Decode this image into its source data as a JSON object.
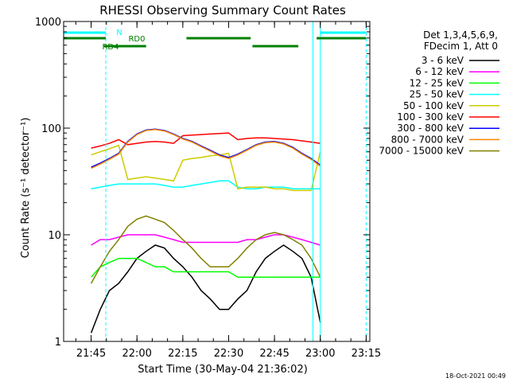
{
  "chart_data": {
    "type": "line",
    "title": "RHESSI Observing Summary Count Rates",
    "xlabel": "Start Time (30-May-04 21:36:02)",
    "ylabel": "Count Rate (s⁻¹ detector⁻¹)",
    "x_unit": "minutes",
    "y_scale": "log",
    "xlim": [
      21.6,
      23.27
    ],
    "ylim": [
      1,
      1000
    ],
    "x_ticks": [
      {
        "label": "21:45",
        "value": 21.75
      },
      {
        "label": "22:00",
        "value": 22.0
      },
      {
        "label": "22:15",
        "value": 22.25
      },
      {
        "label": "22:30",
        "value": 22.5
      },
      {
        "label": "22:45",
        "value": 22.75
      },
      {
        "label": "23:00",
        "value": 23.0
      },
      {
        "label": "23:15",
        "value": 23.25
      }
    ],
    "y_ticks": [
      {
        "label": "1",
        "value": 1
      },
      {
        "label": "10",
        "value": 10
      },
      {
        "label": "100",
        "value": 100
      },
      {
        "label": "1000",
        "value": 1000
      }
    ],
    "legend_header": [
      "Det 1,3,4,5,6,9,",
      "FDecim 1, Att 0"
    ],
    "legend_position": "right",
    "series": [
      {
        "name": "3 - 6 keV",
        "color": "#000000",
        "x": [
          21.75,
          21.8,
          21.85,
          21.9,
          21.95,
          22.0,
          22.05,
          22.1,
          22.15,
          22.2,
          22.25,
          22.3,
          22.35,
          22.4,
          22.45,
          22.5,
          22.55,
          22.6,
          22.65,
          22.7,
          22.75,
          22.8,
          22.85,
          22.9,
          22.95,
          23.0
        ],
        "y": [
          1.2,
          2,
          3,
          3.5,
          4.5,
          6,
          7,
          8,
          7.5,
          6,
          5,
          4,
          3,
          2.5,
          2,
          2,
          2.5,
          3,
          4.5,
          6,
          7,
          8,
          7,
          6,
          4,
          1.5
        ]
      },
      {
        "name": "6 - 12 keV",
        "color": "#ff00ff",
        "x": [
          21.75,
          21.8,
          21.85,
          21.9,
          21.95,
          22.0,
          22.05,
          22.1,
          22.15,
          22.2,
          22.25,
          22.3,
          22.35,
          22.4,
          22.45,
          22.5,
          22.55,
          22.6,
          22.65,
          22.7,
          22.75,
          22.8,
          22.85,
          22.9,
          22.95,
          23.0
        ],
        "y": [
          8,
          9,
          9,
          9.5,
          10,
          10,
          10,
          10,
          9.5,
          9,
          8.5,
          8.5,
          8.5,
          8.5,
          8.5,
          8.5,
          8.5,
          9,
          9,
          9.5,
          10,
          10,
          9.5,
          9,
          8.5,
          8
        ]
      },
      {
        "name": "12 - 25 keV",
        "color": "#00ff00",
        "x": [
          21.75,
          21.8,
          21.85,
          21.9,
          21.95,
          22.0,
          22.05,
          22.1,
          22.15,
          22.2,
          22.25,
          22.3,
          22.35,
          22.4,
          22.45,
          22.5,
          22.55,
          22.6,
          22.65,
          22.7,
          22.75,
          22.8,
          22.85,
          22.9,
          22.95,
          23.0
        ],
        "y": [
          4,
          5,
          5.5,
          6,
          6,
          6,
          5.5,
          5,
          5,
          4.5,
          4.5,
          4.5,
          4.5,
          4.5,
          4.5,
          4.5,
          4,
          4,
          4,
          4,
          4,
          4,
          4,
          4,
          4,
          4
        ]
      },
      {
        "name": "25 - 50 keV",
        "color": "#00ffff",
        "x": [
          21.75,
          21.8,
          21.85,
          21.9,
          21.95,
          22.0,
          22.05,
          22.1,
          22.15,
          22.2,
          22.25,
          22.3,
          22.35,
          22.4,
          22.45,
          22.5,
          22.55,
          22.6,
          22.65,
          22.7,
          22.75,
          22.8,
          22.85,
          22.9,
          22.95,
          23.0
        ],
        "y": [
          27,
          28,
          29,
          30,
          30,
          30,
          30,
          30,
          29,
          28,
          28,
          29,
          30,
          31,
          32,
          32,
          28,
          27,
          27,
          28,
          28,
          28,
          27,
          27,
          27,
          27
        ]
      },
      {
        "name": "50 - 100 keV",
        "color": "#cccc00",
        "x": [
          21.75,
          21.8,
          21.85,
          21.9,
          21.95,
          22.0,
          22.05,
          22.1,
          22.15,
          22.2,
          22.25,
          22.3,
          22.35,
          22.4,
          22.45,
          22.5,
          22.55,
          22.6,
          22.65,
          22.7,
          22.75,
          22.8,
          22.85,
          22.9,
          22.95,
          23.0
        ],
        "y": [
          56,
          60,
          64,
          69,
          33,
          34,
          35,
          34,
          33,
          32,
          50,
          52,
          53,
          55,
          56,
          58,
          27,
          28,
          28,
          28,
          27,
          27,
          26,
          26,
          26,
          60
        ]
      },
      {
        "name": "100 - 300 keV",
        "color": "#ff0000",
        "x": [
          21.75,
          21.8,
          21.85,
          21.9,
          21.95,
          22.0,
          22.05,
          22.1,
          22.15,
          22.2,
          22.25,
          22.3,
          22.35,
          22.4,
          22.45,
          22.5,
          22.55,
          22.6,
          22.65,
          22.7,
          22.75,
          22.8,
          22.85,
          22.9,
          22.95,
          23.0
        ],
        "y": [
          65,
          68,
          72,
          78,
          70,
          72,
          74,
          75,
          74,
          72,
          85,
          86,
          87,
          88,
          89,
          90,
          78,
          80,
          81,
          81,
          80,
          79,
          78,
          76,
          74,
          72
        ]
      },
      {
        "name": "300 - 800 keV",
        "color": "#0000ff",
        "x": [
          21.75,
          21.8,
          21.85,
          21.9,
          21.95,
          22.0,
          22.05,
          22.1,
          22.15,
          22.2,
          22.25,
          22.3,
          22.35,
          22.4,
          22.45,
          22.5,
          22.55,
          22.6,
          22.65,
          22.7,
          22.75,
          22.8,
          22.85,
          22.9,
          22.95,
          23.0
        ],
        "y": [
          43,
          47,
          52,
          58,
          75,
          88,
          96,
          98,
          95,
          88,
          80,
          75,
          68,
          62,
          56,
          53,
          57,
          63,
          70,
          74,
          75,
          72,
          66,
          58,
          52,
          45
        ]
      },
      {
        "name": "800 - 7000 keV",
        "color": "#ff8800",
        "x": [
          21.75,
          21.8,
          21.85,
          21.9,
          21.95,
          22.0,
          22.05,
          22.1,
          22.15,
          22.2,
          22.25,
          22.3,
          22.35,
          22.4,
          22.45,
          22.5,
          22.55,
          22.6,
          22.65,
          22.7,
          22.75,
          22.8,
          22.85,
          22.9,
          22.95,
          23.0
        ],
        "y": [
          42,
          46,
          51,
          57,
          74,
          87,
          95,
          97,
          94,
          87,
          79,
          74,
          67,
          61,
          55,
          52,
          56,
          62,
          69,
          73,
          74,
          71,
          65,
          57,
          51,
          44
        ]
      },
      {
        "name": "7000 - 15000 keV",
        "color": "#808000",
        "x": [
          21.75,
          21.8,
          21.85,
          21.9,
          21.95,
          22.0,
          22.05,
          22.1,
          22.15,
          22.2,
          22.25,
          22.3,
          22.35,
          22.4,
          22.45,
          22.5,
          22.55,
          22.6,
          22.65,
          22.7,
          22.75,
          22.8,
          22.85,
          22.9,
          22.95,
          23.0
        ],
        "y": [
          3.5,
          5,
          7,
          9,
          12,
          14,
          15,
          14,
          13,
          11,
          9,
          7.5,
          6,
          5,
          5,
          5,
          6,
          7.5,
          9,
          10,
          10.5,
          10,
          9,
          8,
          6,
          4
        ]
      }
    ],
    "flags": [
      {
        "label": "N",
        "color": "#00ffff",
        "segments": [
          [
            21.6,
            21.83
          ],
          [
            23.0,
            23.25
          ]
        ]
      },
      {
        "label": "RD0",
        "color": "#008000",
        "segments": [
          [
            21.6,
            21.83
          ],
          [
            22.27,
            22.62
          ],
          [
            22.98,
            23.25
          ]
        ]
      },
      {
        "label": "RD4",
        "color": "#008000",
        "segments": [
          [
            21.82,
            22.05
          ],
          [
            22.63,
            22.88
          ]
        ]
      }
    ],
    "vertical_markers": [
      21.6,
      21.83,
      22.96,
      23.0,
      23.25
    ]
  },
  "footer": {
    "timestamp": "18-Oct-2021 00:49"
  }
}
